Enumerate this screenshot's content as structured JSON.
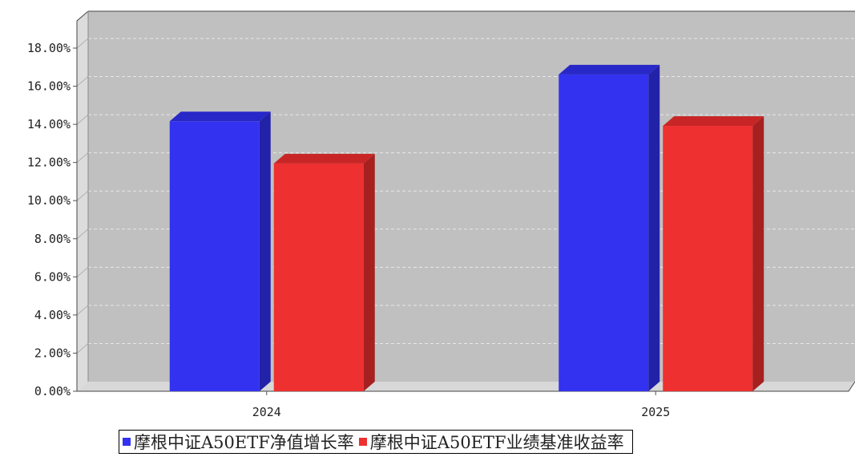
{
  "chart_data": {
    "type": "bar",
    "categories": [
      "2024",
      "2025"
    ],
    "series": [
      {
        "name": "摩根中证A50ETF净值增长率",
        "values": [
          14.16,
          16.62
        ],
        "color": "#3232f0",
        "side_color": "#2222a8",
        "top_color": "#2828c8"
      },
      {
        "name": "摩根中证A50ETF业绩基准收益率",
        "values": [
          11.95,
          13.92
        ],
        "color": "#ee3030",
        "side_color": "#a62020",
        "top_color": "#c82626"
      }
    ],
    "ylim": [
      0,
      18
    ],
    "ytick_values": [
      0,
      2,
      4,
      6,
      8,
      10,
      12,
      14,
      16,
      18
    ],
    "ytick_labels": [
      "0.00%",
      "2.00%",
      "4.00%",
      "6.00%",
      "8.00%",
      "10.00%",
      "12.00%",
      "14.00%",
      "16.00%",
      "18.00%"
    ],
    "grid": true,
    "legend_position": "bottom",
    "title": "",
    "xlabel": "",
    "ylabel": "",
    "colors": {
      "plot_background": "#c0c0c0",
      "wall": "#dcdcdc",
      "floor": "#d8d8d8",
      "gridline": "#e8e8e8"
    }
  }
}
